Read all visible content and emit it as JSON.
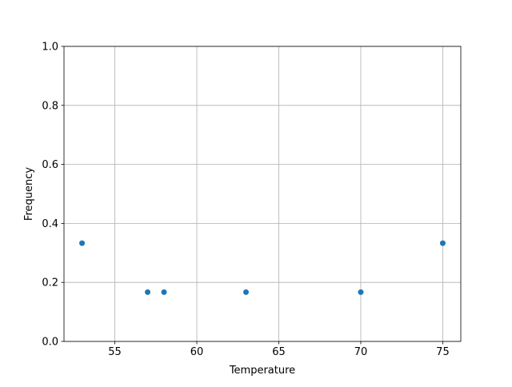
{
  "chart_data": {
    "type": "scatter",
    "title": "",
    "xlabel": "Temperature",
    "ylabel": "Frequency",
    "x": [
      53,
      57,
      58,
      63,
      70,
      75
    ],
    "y": [
      0.333,
      0.167,
      0.167,
      0.167,
      0.167,
      0.333
    ],
    "xlim": [
      51.9,
      76.1
    ],
    "ylim": [
      0.0,
      1.0
    ],
    "xticks": [
      "55",
      "60",
      "65",
      "70",
      "75"
    ],
    "yticks": [
      "0.0",
      "0.2",
      "0.4",
      "0.6",
      "0.8",
      "1.0"
    ],
    "grid": true,
    "color": "#1f77b4"
  }
}
